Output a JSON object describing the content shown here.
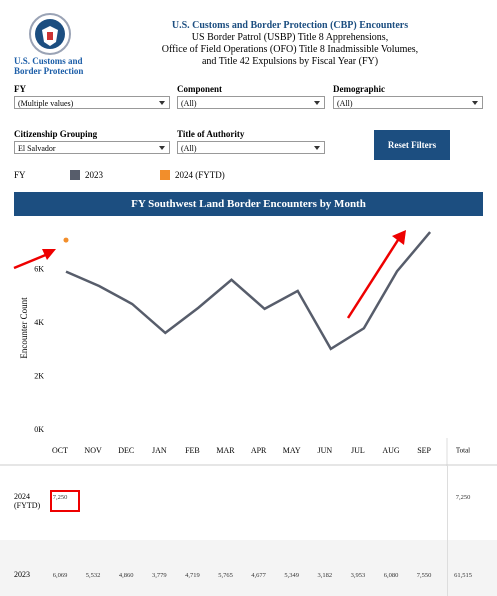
{
  "header": {
    "logo_text": "U.S. Customs and Border Protection",
    "title": "U.S. Customs and Border Protection (CBP) Encounters",
    "subtitle_lines": [
      "US Border Patrol (USBP) Title 8 Apprehensions,",
      "Office of Field Operations (OFO) Title 8 Inadmissible Volumes,",
      "and Title 42 Expulsions by Fiscal Year (FY)"
    ]
  },
  "filters": [
    {
      "label": "FY",
      "value": "(Multiple values)"
    },
    {
      "label": "Component",
      "value": "(All)"
    },
    {
      "label": "Demographic",
      "value": "(All)"
    },
    {
      "label": "Citizenship Grouping",
      "value": "El Salvador"
    },
    {
      "label": "Title of Authority",
      "value": "(All)"
    }
  ],
  "reset_button": "Reset Filters",
  "chart_data": {
    "type": "line",
    "title": "FY Southwest Land Border Encounters by Month",
    "y_label": "Encounter Count",
    "legend_title": "FY",
    "categories": [
      "OCT",
      "NOV",
      "DEC",
      "JAN",
      "FEB",
      "MAR",
      "APR",
      "MAY",
      "JUN",
      "JUL",
      "AUG",
      "SEP"
    ],
    "series": [
      {
        "name": "2023",
        "color": "#575d6b",
        "values": [
          6069,
          5532,
          4860,
          3779,
          4719,
          5765,
          4677,
          5349,
          3182,
          3953,
          6080,
          7550
        ]
      },
      {
        "name": "2024 (FYTD)",
        "color": "#f28e2b",
        "values": [
          7250,
          null,
          null,
          null,
          null,
          null,
          null,
          null,
          null,
          null,
          null,
          null
        ]
      }
    ],
    "ylim": [
      0,
      8000
    ],
    "yticks": [
      {
        "value": 0,
        "label": "0K"
      },
      {
        "value": 2000,
        "label": "2K"
      },
      {
        "value": 4000,
        "label": "4K"
      },
      {
        "value": 6000,
        "label": "6K"
      }
    ]
  },
  "table": {
    "total_header": "Total",
    "rows": [
      {
        "label": "2024 (FYTD)",
        "cells": [
          "7,250"
        ],
        "total": "7,250"
      },
      {
        "label": "2023",
        "cells": [
          "6,069",
          "5,532",
          "4,860",
          "3,779",
          "4,719",
          "5,765",
          "4,677",
          "5,349",
          "3,182",
          "3,953",
          "6,080",
          "7,550"
        ],
        "total": "61,515"
      }
    ]
  }
}
